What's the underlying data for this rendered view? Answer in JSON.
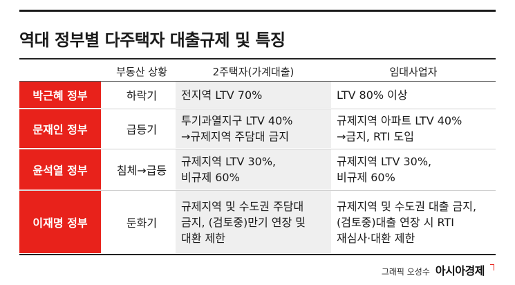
{
  "title": "역대 정부별 다주택자 대출규제 및 특징",
  "columns": {
    "status": "부동산 상황",
    "household": "2주택자(가계대출)",
    "landlord": "임대사업자"
  },
  "rows": [
    {
      "gov": "박근혜 정부",
      "status": "하락기",
      "household": [
        "전지역 LTV 70%"
      ],
      "landlord": [
        "LTV 80% 이상"
      ]
    },
    {
      "gov": "문재인 정부",
      "status": "급등기",
      "household": [
        "투기과열지구 LTV 40%",
        "→규제지역 주담대 금지"
      ],
      "landlord": [
        "규제지역 아파트 LTV 40%",
        "→금지, RTI 도입"
      ]
    },
    {
      "gov": "윤석열 정부",
      "status": "침체→급등",
      "household": [
        "규제지역 LTV 30%,",
        "비규제 60%"
      ],
      "landlord": [
        "규제지역 LTV 30%,",
        "비규제 60%"
      ]
    },
    {
      "gov": "이재명 정부",
      "status": "둔화기",
      "household": [
        "규제지역 및 수도권 주담대",
        "금지, (검토중)만기 연장 및",
        "대환 제한"
      ],
      "landlord": [
        "규제지역 및 수도권 대출 금지,",
        "(검토중)대출 연장 시 RTI",
        "재심사·대환 제한"
      ]
    }
  ],
  "credit": {
    "label": "그래픽 오성수",
    "brand": "아시아경제"
  },
  "colors": {
    "accent": "#e8221b",
    "shade": "#efefef"
  }
}
